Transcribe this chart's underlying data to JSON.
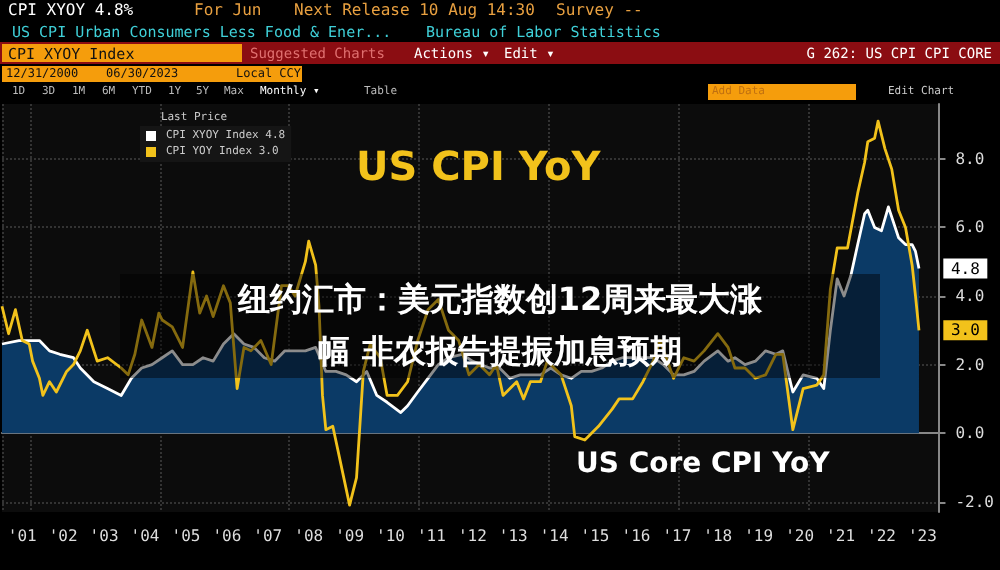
{
  "chart_data": {
    "type": "line",
    "annotations": [
      "CPI XYOY 4.8%",
      "For Jun",
      "Next Release 10 Aug 14:30",
      "Survey --",
      "US CPI Urban Consumers Less Food & Ener...",
      "Bureau of Labor Statistics",
      "CPI XYOY Index",
      "Suggested Charts",
      "Actions ▾",
      "Edit ▾",
      "G 262: US CPI CPI CORE",
      "12/31/2000",
      "06/30/2023",
      "Local CCY",
      "1D",
      "3D",
      "1M",
      "6M",
      "YTD",
      "1Y",
      "5Y",
      "Max",
      "Monthly ▾",
      "Table",
      "Add Data",
      "Edit Chart",
      "US CPI YoY",
      "US Core CPI YoY",
      "纽约汇市：美元指数创12周来最大涨",
      "幅 非农报告提振加息预期",
      {
        "text": "4.8",
        "x": "2023-06",
        "y": 4.8
      },
      {
        "text": "3.0",
        "x": "2023-06",
        "y": 3.0
      }
    ],
    "legend_title": "Last Price",
    "legend": "top left",
    "grid": true,
    "xlim": [
      "2001-01",
      "2023-12"
    ],
    "xticks": [
      {
        "value": "2001-07",
        "label": "'01"
      },
      {
        "value": "2002-07",
        "label": "'02"
      },
      {
        "value": "2003-07",
        "label": "'03"
      },
      {
        "value": "2004-07",
        "label": "'04"
      },
      {
        "value": "2005-07",
        "label": "'05"
      },
      {
        "value": "2006-07",
        "label": "'06"
      },
      {
        "value": "2007-07",
        "label": "'07"
      },
      {
        "value": "2008-07",
        "label": "'08"
      },
      {
        "value": "2009-07",
        "label": "'09"
      },
      {
        "value": "2010-07",
        "label": "'10"
      },
      {
        "value": "2011-07",
        "label": "'11"
      },
      {
        "value": "2012-07",
        "label": "'12"
      },
      {
        "value": "2013-07",
        "label": "'13"
      },
      {
        "value": "2014-07",
        "label": "'14"
      },
      {
        "value": "2015-07",
        "label": "'15"
      },
      {
        "value": "2016-07",
        "label": "'16"
      },
      {
        "value": "2017-07",
        "label": "'17"
      },
      {
        "value": "2018-07",
        "label": "'18"
      },
      {
        "value": "2019-07",
        "label": "'19"
      },
      {
        "value": "2020-07",
        "label": "'20"
      },
      {
        "value": "2021-07",
        "label": "'21"
      },
      {
        "value": "2022-07",
        "label": "'22"
      },
      {
        "value": "2023-07",
        "label": "'23"
      }
    ],
    "ylim": [
      -2.3,
      9.6
    ],
    "yticks": [
      {
        "value": -2,
        "label": "-2.0"
      },
      {
        "value": 0,
        "label": "0.0"
      },
      {
        "value": 2,
        "label": "2.0"
      },
      {
        "value": 4,
        "label": "4.0"
      },
      {
        "value": 6,
        "label": "6.0"
      },
      {
        "value": 8,
        "label": "8.0"
      }
    ],
    "series": [
      {
        "name": "CPI XYOY Index 4.8",
        "type": "area",
        "color": "#0b3a66",
        "x": [
          "2001-01",
          "2001-06",
          "2001-12",
          "2002-03",
          "2002-06",
          "2002-10",
          "2002-12",
          "2003-04",
          "2003-08",
          "2003-12",
          "2004-03",
          "2004-06",
          "2004-09",
          "2004-12",
          "2005-03",
          "2005-06",
          "2005-09",
          "2005-12",
          "2006-03",
          "2006-06",
          "2006-09",
          "2006-12",
          "2007-03",
          "2007-06",
          "2007-09",
          "2007-12",
          "2008-03",
          "2008-06",
          "2008-09",
          "2008-12",
          "2009-03",
          "2009-06",
          "2009-09",
          "2009-12",
          "2010-03",
          "2010-06",
          "2010-10",
          "2010-12",
          "2011-03",
          "2011-06",
          "2011-09",
          "2011-12",
          "2012-04",
          "2012-07",
          "2012-12",
          "2013-03",
          "2013-06",
          "2013-09",
          "2013-12",
          "2014-03",
          "2014-06",
          "2014-09",
          "2014-12",
          "2015-03",
          "2015-06",
          "2015-09",
          "2015-12",
          "2016-03",
          "2016-06",
          "2016-09",
          "2016-12",
          "2017-03",
          "2017-06",
          "2017-09",
          "2017-12",
          "2018-03",
          "2018-07",
          "2018-10",
          "2018-12",
          "2019-03",
          "2019-06",
          "2019-09",
          "2019-12",
          "2020-02",
          "2020-05",
          "2020-08",
          "2020-12",
          "2021-02",
          "2021-04",
          "2021-06",
          "2021-08",
          "2021-10",
          "2021-12",
          "2022-02",
          "2022-03",
          "2022-05",
          "2022-07",
          "2022-09",
          "2022-12",
          "2023-02",
          "2023-04",
          "2023-05",
          "2023-06"
        ],
        "values": [
          2.6,
          2.7,
          2.7,
          2.4,
          2.3,
          2.2,
          1.9,
          1.5,
          1.3,
          1.1,
          1.6,
          1.9,
          2.0,
          2.2,
          2.4,
          2.0,
          2.0,
          2.2,
          2.1,
          2.6,
          2.9,
          2.6,
          2.5,
          2.2,
          2.1,
          2.4,
          2.4,
          2.4,
          2.5,
          1.8,
          1.8,
          1.7,
          1.5,
          1.8,
          1.1,
          0.9,
          0.6,
          0.8,
          1.2,
          1.6,
          2.0,
          2.2,
          2.3,
          2.1,
          1.9,
          1.9,
          1.6,
          1.7,
          1.7,
          1.7,
          1.9,
          1.7,
          1.6,
          1.8,
          1.8,
          1.9,
          2.1,
          2.2,
          2.2,
          2.2,
          2.2,
          2.0,
          1.7,
          1.7,
          1.8,
          2.1,
          2.4,
          2.1,
          2.2,
          2.0,
          2.1,
          2.4,
          2.3,
          2.4,
          1.2,
          1.7,
          1.6,
          1.3,
          3.0,
          4.5,
          4.0,
          4.6,
          5.5,
          6.4,
          6.5,
          6.0,
          5.9,
          6.6,
          5.7,
          5.5,
          5.5,
          5.3,
          4.8
        ]
      },
      {
        "name": "CPI YOY Index 3.0",
        "color": "#f2c21b",
        "x": [
          "2001-01",
          "2001-03",
          "2001-05",
          "2001-07",
          "2001-09",
          "2001-10",
          "2001-12",
          "2002-01",
          "2002-03",
          "2002-05",
          "2002-08",
          "2002-10",
          "2002-12",
          "2003-02",
          "2003-05",
          "2003-08",
          "2003-12",
          "2004-02",
          "2004-04",
          "2004-06",
          "2004-09",
          "2004-11",
          "2004-12",
          "2005-03",
          "2005-06",
          "2005-09",
          "2005-11",
          "2006-01",
          "2006-03",
          "2006-06",
          "2006-08",
          "2006-10",
          "2006-12",
          "2007-02",
          "2007-05",
          "2007-08",
          "2007-11",
          "2008-01",
          "2008-03",
          "2008-06",
          "2008-07",
          "2008-09",
          "2008-10",
          "2008-11",
          "2008-12",
          "2009-02",
          "2009-04",
          "2009-07",
          "2009-09",
          "2009-11",
          "2010-01",
          "2010-04",
          "2010-06",
          "2010-09",
          "2010-12",
          "2011-03",
          "2011-06",
          "2011-09",
          "2011-12",
          "2012-03",
          "2012-06",
          "2012-09",
          "2012-12",
          "2013-02",
          "2013-04",
          "2013-08",
          "2013-10",
          "2013-12",
          "2014-03",
          "2014-05",
          "2014-09",
          "2014-12",
          "2015-01",
          "2015-04",
          "2015-08",
          "2015-12",
          "2016-02",
          "2016-06",
          "2016-09",
          "2016-12",
          "2017-02",
          "2017-06",
          "2017-09",
          "2017-12",
          "2018-03",
          "2018-07",
          "2018-10",
          "2018-12",
          "2019-03",
          "2019-06",
          "2019-09",
          "2019-12",
          "2020-02",
          "2020-05",
          "2020-08",
          "2020-12",
          "2021-02",
          "2021-04",
          "2021-06",
          "2021-09",
          "2021-12",
          "2022-02",
          "2022-03",
          "2022-05",
          "2022-06",
          "2022-08",
          "2022-10",
          "2022-12",
          "2023-02",
          "2023-04",
          "2023-05",
          "2023-06"
        ],
        "values": [
          3.7,
          2.9,
          3.6,
          2.7,
          2.6,
          2.1,
          1.6,
          1.1,
          1.5,
          1.2,
          1.8,
          2.0,
          2.4,
          3.0,
          2.1,
          2.2,
          1.9,
          1.7,
          2.3,
          3.3,
          2.5,
          3.5,
          3.3,
          3.1,
          2.5,
          4.7,
          3.5,
          4.0,
          3.4,
          4.3,
          3.8,
          1.3,
          2.5,
          2.4,
          2.7,
          2.0,
          4.3,
          4.3,
          4.0,
          5.0,
          5.6,
          4.9,
          3.7,
          1.1,
          0.1,
          0.2,
          -0.7,
          -2.1,
          -1.3,
          1.8,
          2.6,
          2.2,
          1.1,
          1.1,
          1.5,
          2.7,
          3.6,
          3.9,
          3.0,
          2.7,
          1.7,
          2.0,
          1.7,
          2.0,
          1.1,
          1.5,
          1.0,
          1.5,
          1.5,
          2.1,
          1.7,
          0.8,
          -0.1,
          -0.2,
          0.2,
          0.7,
          1.0,
          1.0,
          1.5,
          2.1,
          2.7,
          1.6,
          2.2,
          2.1,
          2.4,
          2.9,
          2.5,
          1.9,
          1.9,
          1.6,
          1.7,
          2.3,
          2.3,
          0.1,
          1.3,
          1.4,
          1.7,
          4.2,
          5.4,
          5.4,
          7.0,
          7.9,
          8.5,
          8.6,
          9.1,
          8.3,
          7.7,
          6.5,
          6.0,
          4.9,
          4.0,
          3.0
        ]
      }
    ]
  }
}
